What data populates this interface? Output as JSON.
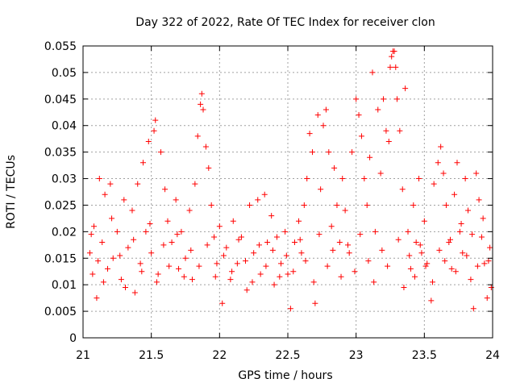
{
  "chart_data": {
    "type": "scatter",
    "title": "Day 322 of 2022, Rate Of TEC Index for receiver clon",
    "xlabel": "GPS time / hours",
    "ylabel": "ROTI / TECUs",
    "xlim": [
      21,
      24
    ],
    "ylim": [
      0,
      0.055
    ],
    "x_ticks": [
      "21",
      "21.5",
      "22",
      "22.5",
      "23",
      "23.5",
      "24"
    ],
    "y_ticks": [
      "0",
      "0.005",
      "0.01",
      "0.015",
      "0.02",
      "0.025",
      "0.03",
      "0.035",
      "0.04",
      "0.045",
      "0.05",
      "0.055"
    ],
    "grid": true,
    "marker": "+",
    "marker_color": "#ff0000",
    "series": [
      {
        "points": [
          [
            21.05,
            0.016
          ],
          [
            21.07,
            0.012
          ],
          [
            21.08,
            0.021
          ],
          [
            21.1,
            0.0075
          ],
          [
            21.12,
            0.03
          ],
          [
            21.14,
            0.018
          ],
          [
            21.16,
            0.027
          ],
          [
            21.18,
            0.013
          ],
          [
            21.2,
            0.029
          ],
          [
            21.22,
            0.015
          ],
          [
            21.25,
            0.02
          ],
          [
            21.28,
            0.011
          ],
          [
            21.3,
            0.026
          ],
          [
            21.33,
            0.017
          ],
          [
            21.36,
            0.024
          ],
          [
            21.38,
            0.0085
          ],
          [
            21.4,
            0.029
          ],
          [
            21.42,
            0.014
          ],
          [
            21.44,
            0.033
          ],
          [
            21.46,
            0.02
          ],
          [
            21.48,
            0.037
          ],
          [
            21.5,
            0.016
          ],
          [
            21.52,
            0.039
          ],
          [
            21.53,
            0.041
          ],
          [
            21.55,
            0.012
          ],
          [
            21.57,
            0.035
          ],
          [
            21.6,
            0.028
          ],
          [
            21.62,
            0.022
          ],
          [
            21.65,
            0.018
          ],
          [
            21.68,
            0.026
          ],
          [
            21.7,
            0.013
          ],
          [
            21.72,
            0.02
          ],
          [
            21.75,
            0.015
          ],
          [
            21.78,
            0.024
          ],
          [
            21.8,
            0.011
          ],
          [
            21.82,
            0.029
          ],
          [
            21.84,
            0.038
          ],
          [
            21.86,
            0.044
          ],
          [
            21.87,
            0.046
          ],
          [
            21.88,
            0.043
          ],
          [
            21.9,
            0.036
          ],
          [
            21.92,
            0.032
          ],
          [
            21.94,
            0.025
          ],
          [
            21.96,
            0.019
          ],
          [
            21.98,
            0.014
          ],
          [
            22.0,
            0.021
          ],
          [
            22.02,
            0.0065
          ],
          [
            22.05,
            0.017
          ],
          [
            22.08,
            0.011
          ],
          [
            22.1,
            0.022
          ],
          [
            22.13,
            0.014
          ],
          [
            22.16,
            0.019
          ],
          [
            22.2,
            0.009
          ],
          [
            22.22,
            0.025
          ],
          [
            22.25,
            0.016
          ],
          [
            22.28,
            0.026
          ],
          [
            22.3,
            0.012
          ],
          [
            22.33,
            0.027
          ],
          [
            22.35,
            0.018
          ],
          [
            22.38,
            0.023
          ],
          [
            22.4,
            0.01
          ],
          [
            22.42,
            0.019
          ],
          [
            22.45,
            0.014
          ],
          [
            22.48,
            0.02
          ],
          [
            22.5,
            0.012
          ],
          [
            22.52,
            0.0055
          ],
          [
            22.55,
            0.018
          ],
          [
            22.58,
            0.022
          ],
          [
            22.6,
            0.016
          ],
          [
            22.62,
            0.025
          ],
          [
            22.64,
            0.03
          ],
          [
            22.66,
            0.0385
          ],
          [
            22.68,
            0.035
          ],
          [
            22.7,
            0.0065
          ],
          [
            22.72,
            0.042
          ],
          [
            22.74,
            0.028
          ],
          [
            22.76,
            0.04
          ],
          [
            22.78,
            0.043
          ],
          [
            22.8,
            0.035
          ],
          [
            22.82,
            0.021
          ],
          [
            22.84,
            0.032
          ],
          [
            22.86,
            0.025
          ],
          [
            22.88,
            0.018
          ],
          [
            22.9,
            0.03
          ],
          [
            22.92,
            0.024
          ],
          [
            22.95,
            0.016
          ],
          [
            22.97,
            0.035
          ],
          [
            23.0,
            0.045
          ],
          [
            23.02,
            0.042
          ],
          [
            23.04,
            0.038
          ],
          [
            23.06,
            0.03
          ],
          [
            23.08,
            0.025
          ],
          [
            23.1,
            0.034
          ],
          [
            23.12,
            0.05
          ],
          [
            23.14,
            0.02
          ],
          [
            23.16,
            0.043
          ],
          [
            23.18,
            0.031
          ],
          [
            23.2,
            0.045
          ],
          [
            23.22,
            0.039
          ],
          [
            23.24,
            0.037
          ],
          [
            23.25,
            0.051
          ],
          [
            23.26,
            0.053
          ],
          [
            23.27,
            0.054
          ],
          [
            23.28,
            0.054
          ],
          [
            23.29,
            0.051
          ],
          [
            23.3,
            0.045
          ],
          [
            23.32,
            0.039
          ],
          [
            23.34,
            0.028
          ],
          [
            23.36,
            0.047
          ],
          [
            23.38,
            0.02
          ],
          [
            23.4,
            0.013
          ],
          [
            23.42,
            0.025
          ],
          [
            23.44,
            0.018
          ],
          [
            23.46,
            0.03
          ],
          [
            23.48,
            0.016
          ],
          [
            23.5,
            0.022
          ],
          [
            23.52,
            0.014
          ],
          [
            23.55,
            0.007
          ],
          [
            23.57,
            0.029
          ],
          [
            23.6,
            0.033
          ],
          [
            23.62,
            0.036
          ],
          [
            23.64,
            0.031
          ],
          [
            23.66,
            0.025
          ],
          [
            23.68,
            0.018
          ],
          [
            23.7,
            0.013
          ],
          [
            23.72,
            0.027
          ],
          [
            23.74,
            0.033
          ],
          [
            23.76,
            0.02
          ],
          [
            23.78,
            0.016
          ],
          [
            23.8,
            0.03
          ],
          [
            23.82,
            0.024
          ],
          [
            23.84,
            0.011
          ],
          [
            23.86,
            0.0055
          ],
          [
            23.88,
            0.031
          ],
          [
            23.9,
            0.026
          ],
          [
            23.92,
            0.019
          ],
          [
            23.94,
            0.014
          ],
          [
            23.96,
            0.0075
          ],
          [
            23.98,
            0.017
          ],
          [
            23.99,
            0.0095
          ],
          [
            21.06,
            0.0195
          ],
          [
            21.11,
            0.0145
          ],
          [
            21.15,
            0.0105
          ],
          [
            21.21,
            0.0225
          ],
          [
            21.27,
            0.0155
          ],
          [
            21.31,
            0.0095
          ],
          [
            21.37,
            0.0185
          ],
          [
            21.43,
            0.0125
          ],
          [
            21.49,
            0.0215
          ],
          [
            21.54,
            0.0105
          ],
          [
            21.59,
            0.0175
          ],
          [
            21.63,
            0.0135
          ],
          [
            21.69,
            0.0195
          ],
          [
            21.74,
            0.0115
          ],
          [
            21.79,
            0.0165
          ],
          [
            21.85,
            0.0135
          ],
          [
            21.91,
            0.0175
          ],
          [
            21.97,
            0.0115
          ],
          [
            22.03,
            0.0155
          ],
          [
            22.09,
            0.0125
          ],
          [
            22.14,
            0.0185
          ],
          [
            22.19,
            0.0145
          ],
          [
            22.24,
            0.0105
          ],
          [
            22.29,
            0.0175
          ],
          [
            22.34,
            0.0135
          ],
          [
            22.39,
            0.0165
          ],
          [
            22.44,
            0.0115
          ],
          [
            22.49,
            0.0155
          ],
          [
            22.54,
            0.0125
          ],
          [
            22.59,
            0.0185
          ],
          [
            22.63,
            0.0145
          ],
          [
            22.69,
            0.0105
          ],
          [
            22.73,
            0.0195
          ],
          [
            22.79,
            0.0135
          ],
          [
            22.83,
            0.0165
          ],
          [
            22.89,
            0.0115
          ],
          [
            22.94,
            0.0175
          ],
          [
            22.99,
            0.0125
          ],
          [
            23.03,
            0.0195
          ],
          [
            23.09,
            0.0145
          ],
          [
            23.13,
            0.0105
          ],
          [
            23.19,
            0.0165
          ],
          [
            23.23,
            0.0135
          ],
          [
            23.31,
            0.0185
          ],
          [
            23.35,
            0.0095
          ],
          [
            23.39,
            0.0155
          ],
          [
            23.43,
            0.0115
          ],
          [
            23.47,
            0.0175
          ],
          [
            23.51,
            0.0135
          ],
          [
            23.56,
            0.0105
          ],
          [
            23.61,
            0.0165
          ],
          [
            23.65,
            0.0145
          ],
          [
            23.69,
            0.0185
          ],
          [
            23.73,
            0.0125
          ],
          [
            23.77,
            0.0215
          ],
          [
            23.81,
            0.0155
          ],
          [
            23.85,
            0.0195
          ],
          [
            23.89,
            0.0135
          ],
          [
            23.93,
            0.0225
          ],
          [
            23.97,
            0.0145
          ]
        ]
      }
    ]
  }
}
